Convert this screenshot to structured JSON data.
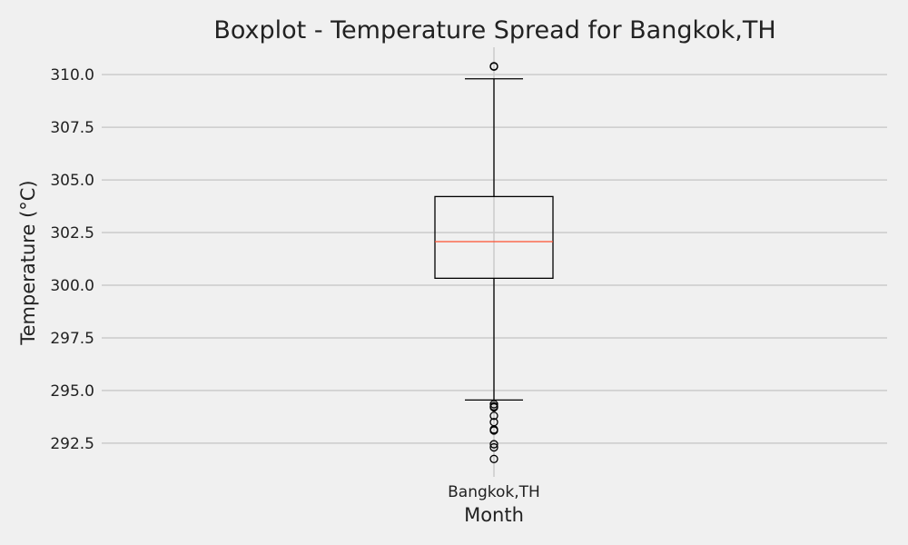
{
  "chart_data": {
    "type": "box",
    "title": "Boxplot - Temperature Spread for Bangkok,TH",
    "xlabel": "Month",
    "ylabel": "Temperature (°C)",
    "categories": [
      "Bangkok,TH"
    ],
    "ylim": [
      290.9,
      311.3
    ],
    "yticks": [
      292.5,
      295.0,
      297.5,
      300.0,
      302.5,
      305.0,
      307.5,
      310.0
    ],
    "grid": true,
    "box": {
      "name": "Bangkok,TH",
      "whisker_low": 294.55,
      "q1": 300.33,
      "median": 302.07,
      "q3": 304.21,
      "whisker_high": 309.8,
      "outliers": [
        310.38,
        310.4,
        294.35,
        294.25,
        294.2,
        293.8,
        293.5,
        293.15,
        293.1,
        292.45,
        292.3,
        291.75
      ]
    },
    "colors": {
      "background": "#f0f0f0",
      "grid": "#cbcbcb",
      "box": "#000000",
      "median": "#fc4f30"
    }
  }
}
